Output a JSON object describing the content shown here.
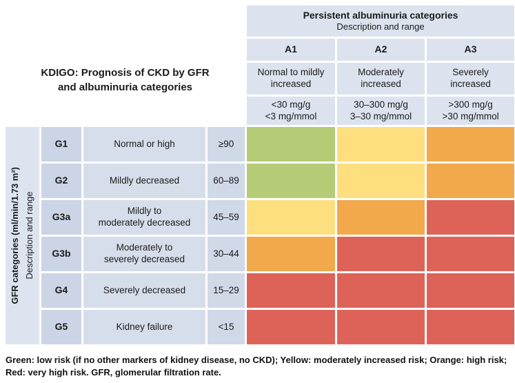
{
  "title": "KDIGO: Prognosis of CKD by GFR\nand albuminuria categories",
  "albuminuria_header": {
    "title": "Persistent albuminuria categories",
    "subtitle": "Description and range"
  },
  "gfr_axis": {
    "title": "GFR categories (ml/min/1.73 m²)",
    "subtitle": "Description and range"
  },
  "columns": [
    {
      "code": "A1",
      "description": "Normal to mildly\nincreased",
      "range": "<30 mg/g\n<3 mg/mmol"
    },
    {
      "code": "A2",
      "description": "Moderately\nincreased",
      "range": "30–300 mg/g\n3–30 mg/mmol"
    },
    {
      "code": "A3",
      "description": "Severely\nincreased",
      "range": ">300 mg/g\n>30 mg/mmol"
    }
  ],
  "rows": [
    {
      "code": "G1",
      "description": "Normal or high",
      "range": "≥90"
    },
    {
      "code": "G2",
      "description": "Mildly decreased",
      "range": "60–89"
    },
    {
      "code": "G3a",
      "description": "Mildly to\nmoderately decreased",
      "range": "45–59"
    },
    {
      "code": "G3b",
      "description": "Moderately to\nseverely decreased",
      "range": "30–44"
    },
    {
      "code": "G4",
      "description": "Severely decreased",
      "range": "15–29"
    },
    {
      "code": "G5",
      "description": "Kidney failure",
      "range": "<15"
    }
  ],
  "risk_colors": {
    "low": "#b5cb76",
    "moderate": "#fddf80",
    "high": "#f2a94b",
    "very_high": "#dd6359"
  },
  "chart_data": {
    "type": "heatmap",
    "title": "KDIGO: Prognosis of CKD by GFR and albuminuria categories",
    "x_axis_label": "Persistent albuminuria categories — Description and range",
    "y_axis_label": "GFR categories (ml/min/1.73 m²) — Description and range",
    "x_categories": [
      "A1",
      "A2",
      "A3"
    ],
    "x_descriptions": [
      "Normal to mildly increased (<30 mg/g, <3 mg/mmol)",
      "Moderately increased (30–300 mg/g, 3–30 mg/mmol)",
      "Severely increased (>300 mg/g, >30 mg/mmol)"
    ],
    "y_categories": [
      "G1",
      "G2",
      "G3a",
      "G3b",
      "G4",
      "G5"
    ],
    "y_descriptions": [
      "Normal or high (≥90)",
      "Mildly decreased (60–89)",
      "Mildly to moderately decreased (45–59)",
      "Moderately to severely decreased (30–44)",
      "Severely decreased (15–29)",
      "Kidney failure (<15)"
    ],
    "matrix": [
      [
        "low",
        "moderate",
        "high"
      ],
      [
        "low",
        "moderate",
        "high"
      ],
      [
        "moderate",
        "high",
        "very_high"
      ],
      [
        "high",
        "very_high",
        "very_high"
      ],
      [
        "very_high",
        "very_high",
        "very_high"
      ],
      [
        "very_high",
        "very_high",
        "very_high"
      ]
    ],
    "risk_legend": {
      "low": "Green: low risk (if no other markers of kidney disease, no CKD)",
      "moderate": "Yellow: moderately increased risk",
      "high": "Orange: high risk",
      "very_high": "Red: very high risk"
    }
  },
  "caption": "Green: low risk (if no other markers of kidney disease, no CKD); Yellow: moderately increased risk; Orange: high risk; Red: very high risk. GFR, glomerular filtration rate."
}
